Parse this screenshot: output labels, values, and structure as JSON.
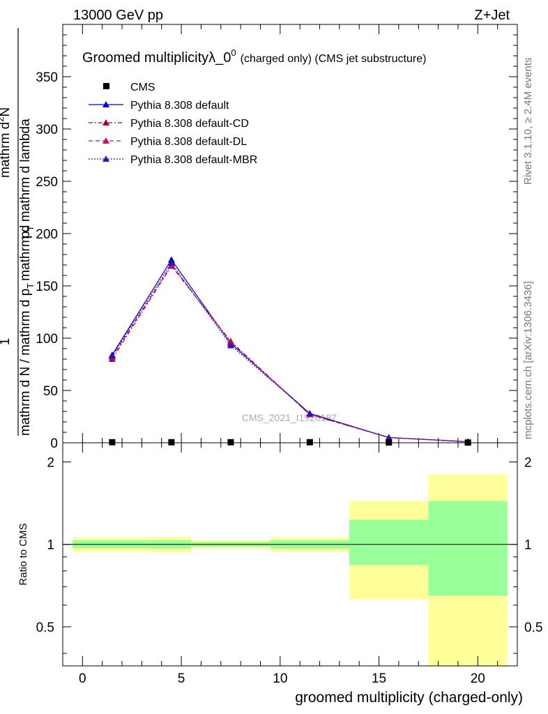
{
  "header": {
    "energy": "13000 GeV pp",
    "process": "Z+Jet"
  },
  "side": {
    "rivet": "Rivet 3.1.10, ≥ 2.4M events",
    "mcplots": "mcplots.cern.ch [arXiv:1306.3436]"
  },
  "chart_data": {
    "type": "line",
    "title_main": "Groomed multiplicityλ_0",
    "title_sup": "0",
    "title_suffix": "(charged only) (CMS jet substructure)",
    "watermark": "CMS_2021_I1920187",
    "ylabel_num": "1",
    "ylabel_den": "mathrm d N / mathrm d p",
    "ylabel_den_sub": "T",
    "ylabel_den2": "mathrm d p",
    "ylabel_num2": "mathrm d",
    "ylabel_num2_sup": "2",
    "ylabel_num2_rest": "N",
    "ylabel_den3_pre": "mathrm d p",
    "ylabel_den3_sub": "T",
    "ylabel_den3_rest": " mathrm d lambda",
    "xlabel": "groomed multiplicity (charged-only)",
    "ratio_ylabel": "Ratio to CMS",
    "xlim": [
      -1,
      22
    ],
    "ylim": [
      0,
      400
    ],
    "ratio_ylim": [
      0.36,
      2.35
    ],
    "x_ticks": [
      0,
      5,
      10,
      15,
      20
    ],
    "y_ticks": [
      0,
      50,
      100,
      150,
      200,
      250,
      300,
      350
    ],
    "ratio_ticks": [
      0.5,
      1,
      2
    ],
    "x": [
      1.5,
      4.5,
      7.5,
      11.5,
      15.5,
      19.5
    ],
    "bin_edges": [
      -0.5,
      3.5,
      5.5,
      9.5,
      13.5,
      17.5,
      21.5
    ],
    "data": {
      "name": "CMS",
      "values": [
        0.5,
        0.5,
        0.5,
        0.5,
        0.3,
        0.2
      ]
    },
    "series": [
      {
        "name": "Pythia 8.308 default",
        "color": "#0000cc",
        "dash": "",
        "values": [
          84,
          175,
          95,
          28,
          5,
          1
        ]
      },
      {
        "name": "Pythia 8.308 default-CD",
        "color": "#aa0033",
        "dash": "6,3,2,3",
        "values": [
          80,
          169,
          97,
          27,
          5,
          1
        ]
      },
      {
        "name": "Pythia 8.308 default-DL",
        "color": "#bb1166",
        "dash": "6,4",
        "values": [
          82,
          170,
          96,
          27,
          5,
          1
        ]
      },
      {
        "name": "Pythia 8.308 default-MBR",
        "color": "#3311bb",
        "dash": "2,2",
        "values": [
          83,
          172,
          93,
          28,
          5,
          1
        ]
      }
    ],
    "ratio_bands": [
      {
        "x0": -0.5,
        "x1": 3.5,
        "y_lo": 0.94,
        "y_hi": 1.06,
        "i_lo": 0.97,
        "i_hi": 1.035
      },
      {
        "x0": 3.5,
        "x1": 5.5,
        "y_lo": 0.935,
        "y_hi": 1.065,
        "i_lo": 0.965,
        "i_hi": 1.035
      },
      {
        "x0": 5.5,
        "x1": 9.5,
        "y_lo": 0.965,
        "y_hi": 1.035,
        "i_lo": 0.98,
        "i_hi": 1.02
      },
      {
        "x0": 9.5,
        "x1": 13.5,
        "y_lo": 0.94,
        "y_hi": 1.06,
        "i_lo": 0.965,
        "i_hi": 1.035
      },
      {
        "x0": 13.5,
        "x1": 17.5,
        "y_lo": 0.63,
        "y_hi": 1.44,
        "i_lo": 0.84,
        "i_hi": 1.23
      },
      {
        "x0": 17.5,
        "x1": 21.5,
        "y_lo": 0.36,
        "y_hi": 1.8,
        "i_lo": 0.65,
        "i_hi": 1.44
      }
    ],
    "colors": {
      "outer_band": "#ffff99",
      "inner_band": "#99ff99"
    }
  }
}
